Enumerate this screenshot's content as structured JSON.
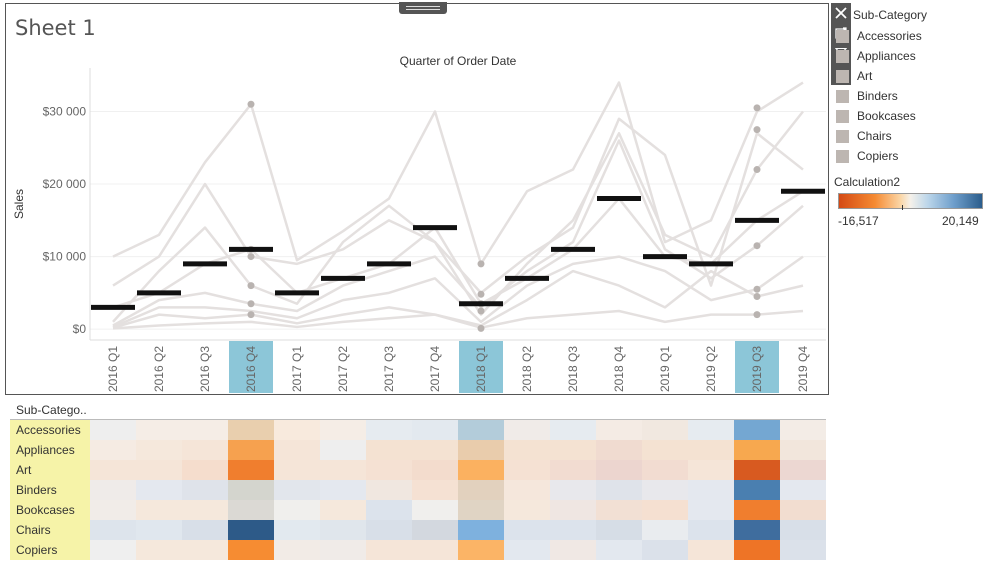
{
  "sheet": {
    "title": "Sheet 1"
  },
  "toolbar": {
    "icons": [
      "close-icon",
      "popout-icon",
      "filter-icon",
      "dropdown-icon"
    ]
  },
  "colors": {
    "line_gray": "#e4e0df",
    "marker_gray": "#b9b3b0",
    "bar_black": "#111111",
    "highlight_teal": "#8cc6d8",
    "label_yellow": "#f6f3a8"
  },
  "chart_data": {
    "type": "line",
    "title": "Quarter of Order Date",
    "ylabel": "Sales",
    "ylim": [
      -1500,
      36000
    ],
    "yticks": [
      {
        "value": 0,
        "label": "$0"
      },
      {
        "value": 10000,
        "label": "$10 000"
      },
      {
        "value": 20000,
        "label": "$20 000"
      },
      {
        "value": 30000,
        "label": "$30 000"
      }
    ],
    "categories": [
      "2016 Q1",
      "2016 Q2",
      "2016 Q3",
      "2016 Q4",
      "2017 Q1",
      "2017 Q2",
      "2017 Q3",
      "2017 Q4",
      "2018 Q1",
      "2018 Q2",
      "2018 Q3",
      "2018 Q4",
      "2019 Q1",
      "2019 Q2",
      "2019 Q3",
      "2019 Q4"
    ],
    "highlighted_categories": [
      "2016 Q4",
      "2018 Q1",
      "2019 Q3"
    ],
    "series": [
      {
        "values": [
          10000,
          13000,
          23000,
          31000,
          9500,
          13500,
          18000,
          30000,
          9000,
          19000,
          22000,
          34000,
          12000,
          15000,
          30000,
          34000
        ]
      },
      {
        "values": [
          6000,
          10000,
          20000,
          10000,
          9000,
          11000,
          15000,
          12000,
          5000,
          10000,
          14000,
          29000,
          24000,
          6000,
          27000,
          22000
        ]
      },
      {
        "values": [
          3000,
          5000,
          9000,
          11000,
          5000,
          7000,
          9000,
          14000,
          3500,
          7000,
          11000,
          18000,
          10000,
          9000,
          15000,
          19000
        ]
      },
      {
        "values": [
          1000,
          8000,
          14000,
          6000,
          3500,
          12000,
          17000,
          12000,
          2000,
          9000,
          15000,
          27000,
          13000,
          10000,
          22000,
          30000
        ]
      },
      {
        "values": [
          500,
          4000,
          5000,
          3500,
          2500,
          6000,
          8000,
          10000,
          3000,
          8000,
          12000,
          26000,
          11000,
          7000,
          11500,
          17000
        ]
      },
      {
        "values": [
          300,
          3000,
          3000,
          2500,
          1500,
          4000,
          5000,
          7000,
          1000,
          6000,
          9000,
          10000,
          8000,
          4000,
          5500,
          10000
        ]
      },
      {
        "values": [
          200,
          2000,
          1500,
          2000,
          800,
          2000,
          3000,
          2000,
          500,
          4000,
          8000,
          6000,
          3000,
          8000,
          4500,
          6000
        ]
      },
      {
        "values": [
          100,
          500,
          800,
          1000,
          300,
          1000,
          1500,
          2000,
          200,
          1500,
          2000,
          2500,
          1000,
          2000,
          2000,
          2500
        ]
      }
    ],
    "markers": [
      {
        "category": "2016 Q4",
        "values": [
          31000,
          11000,
          10000,
          6000,
          3500,
          2000
        ]
      },
      {
        "category": "2018 Q1",
        "values": [
          9000,
          4800,
          3500,
          2500,
          100
        ]
      },
      {
        "category": "2019 Q3",
        "values": [
          30500,
          27500,
          22000,
          11500,
          5500,
          4500,
          2000
        ]
      }
    ],
    "reference_bars": [
      3000,
      5000,
      9000,
      11000,
      5000,
      7000,
      9000,
      14000,
      3500,
      7000,
      11000,
      18000,
      10000,
      9000,
      15000,
      19000
    ]
  },
  "legend": {
    "title": "Sub-Category",
    "items": [
      {
        "label": "Accessories",
        "color": "#bdb6b1"
      },
      {
        "label": "Appliances",
        "color": "#bdb6b1"
      },
      {
        "label": "Art",
        "color": "#bdb6b1"
      },
      {
        "label": "Binders",
        "color": "#bdb6b1"
      },
      {
        "label": "Bookcases",
        "color": "#bdb6b1"
      },
      {
        "label": "Chairs",
        "color": "#bdb6b1"
      },
      {
        "label": "Copiers",
        "color": "#bdb6b1"
      }
    ]
  },
  "calculation_legend": {
    "title": "Calculation2",
    "min_label": "-16,517",
    "max_label": "20,149"
  },
  "heatmap": {
    "header": "Sub-Catego..",
    "rows": [
      {
        "label": "Accessories",
        "colors": [
          "#eeeeee",
          "#f5ede6",
          "#f5ede6",
          "#e9cfae",
          "#f8eadd",
          "#f5ede6",
          "#e6ebf0",
          "#e3e9ef",
          "#b3ccda",
          "#f0ebe8",
          "#e6ebf0",
          "#f4ebe4",
          "#f1e8e0",
          "#e6ebf0",
          "#74a7d2",
          "#f3ece6"
        ]
      },
      {
        "label": "Appliances",
        "colors": [
          "#f5ebe3",
          "#f5e8dc",
          "#f5e5d8",
          "#f6a14f",
          "#f5e5d8",
          "#eeeeee",
          "#f4e2d2",
          "#f4e2d2",
          "#e9ccac",
          "#f4e2d2",
          "#f4e2d2",
          "#f0dbd0",
          "#f4e2d2",
          "#f4e2d2",
          "#f7a84f",
          "#f2e6dc"
        ]
      },
      {
        "label": "Art",
        "colors": [
          "#f5e5d8",
          "#f5e5d8",
          "#f5ddcd",
          "#f07e2e",
          "#f5e5d8",
          "#f5e5d8",
          "#f5e1d3",
          "#f3dccd",
          "#fbb160",
          "#f5e1d3",
          "#f2dcd1",
          "#ecd5cf",
          "#f2dcd1",
          "#f5e5d8",
          "#d85a20",
          "#ecd7d2"
        ]
      },
      {
        "label": "Binders",
        "colors": [
          "#efebe9",
          "#e4e8ef",
          "#dfe3ea",
          "#d4d5ce",
          "#e2e6ec",
          "#e4e8ef",
          "#f0e7e0",
          "#f5e1d3",
          "#e2d1be",
          "#f5e7dc",
          "#e8e8ec",
          "#dfe3ea",
          "#e8e8ec",
          "#e4e8ef",
          "#4a7fb0",
          "#e4e8ef"
        ]
      },
      {
        "label": "Bookcases",
        "colors": [
          "#f1ece8",
          "#f5e8dc",
          "#f5e8dc",
          "#dbd9d4",
          "#f0efed",
          "#f5e8dc",
          "#dce3ec",
          "#f0efed",
          "#e0d4c4",
          "#f5e8dc",
          "#efe6e2",
          "#f2e0d4",
          "#f5e0d1",
          "#e4e8ef",
          "#f07e2e",
          "#f2ddd0"
        ]
      },
      {
        "label": "Chairs",
        "colors": [
          "#dde4ec",
          "#e0e7ee",
          "#d8dfe8",
          "#2d5a88",
          "#e2e9ef",
          "#e0e6ec",
          "#d8dfe8",
          "#d3d8df",
          "#7eb1de",
          "#dce3ec",
          "#dce3ec",
          "#d6dde6",
          "#e9ecef",
          "#dce3ec",
          "#3f6d9e",
          "#d8dfe8"
        ]
      },
      {
        "label": "Copiers",
        "colors": [
          "#efefef",
          "#f5e8dc",
          "#f5e8dc",
          "#f68c32",
          "#f2ebe6",
          "#f0ebe8",
          "#f5e5d8",
          "#f5e5d8",
          "#fbb466",
          "#e3e8ef",
          "#f0e8e4",
          "#e3e8ef",
          "#dbe1ea",
          "#f5e5d8",
          "#ee7426",
          "#dbe1ea"
        ]
      }
    ]
  }
}
